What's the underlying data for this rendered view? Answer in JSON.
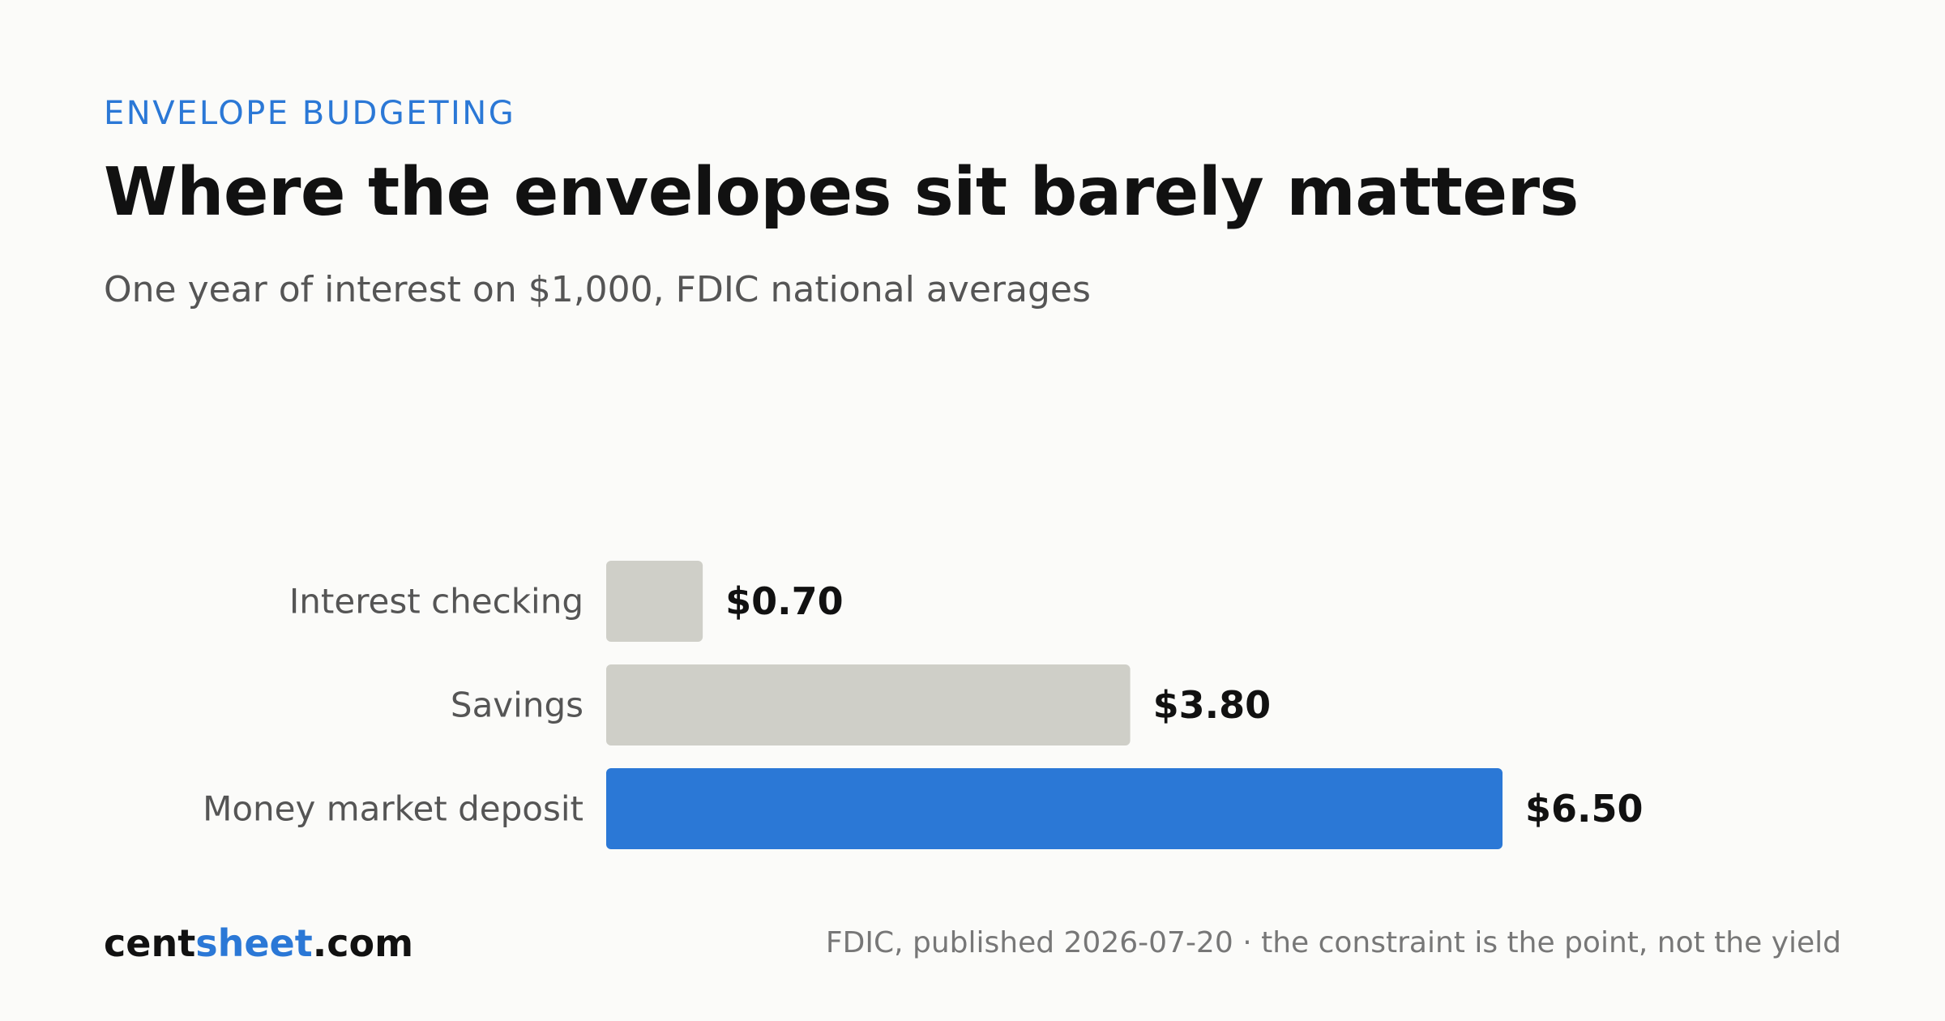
{
  "kicker": "ENVELOPE BUDGETING",
  "title": "Where the envelopes sit barely matters",
  "subtitle": "One year of interest on $1,000, FDIC national averages",
  "brand": {
    "part1": "cent",
    "part2": "sheet",
    "part3": ".com"
  },
  "source": "FDIC, published 2026-07-20 · the constraint is the point, not the yield",
  "colors": {
    "accent": "#2b78d6",
    "muted_bar": "#cfcfc8",
    "background": "#fbfbf9"
  },
  "chart_data": {
    "type": "bar",
    "orientation": "horizontal",
    "categories": [
      "Interest checking",
      "Savings",
      "Money market deposit"
    ],
    "values": [
      0.7,
      3.8,
      6.5
    ],
    "value_labels": [
      "$0.70",
      "$3.80",
      "$6.50"
    ],
    "highlight_index": 2,
    "xlim": [
      0,
      6.5
    ],
    "grid": false,
    "legend": "none"
  }
}
